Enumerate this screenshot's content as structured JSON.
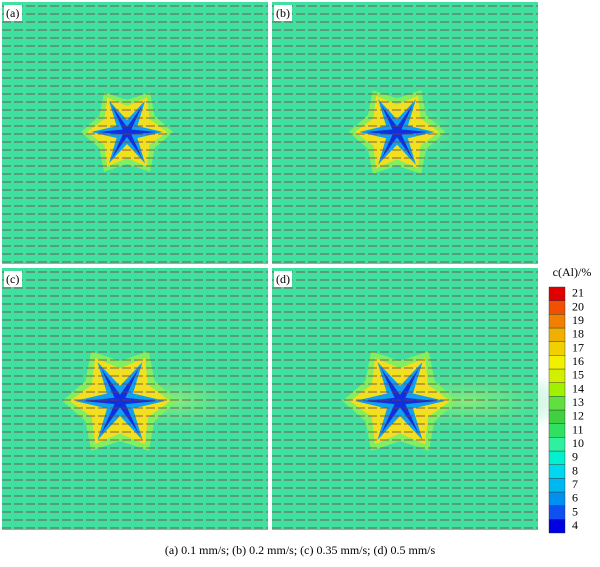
{
  "panels": [
    "(a)",
    "(b)",
    "(c)",
    "(d)"
  ],
  "colorbar": {
    "title": "c(Al)/%",
    "levels": [
      4,
      5,
      6,
      7,
      8,
      9,
      10,
      11,
      12,
      13,
      14,
      15,
      16,
      17,
      18,
      19,
      20,
      21
    ],
    "colors": [
      "#0000e0",
      "#1050f0",
      "#0090f0",
      "#00b8f0",
      "#00d8f0",
      "#00f0d0",
      "#30f0a0",
      "#30e060",
      "#40d040",
      "#60e040",
      "#a0f000",
      "#d0f000",
      "#f0f000",
      "#f0d000",
      "#f0b000",
      "#f08000",
      "#f05000",
      "#e00000"
    ]
  },
  "caption": "(a)  0.1  mm/s;  (b) 0.2 mm/s; (c) 0.35 mm/s; (d) 0.5 mm/s"
}
